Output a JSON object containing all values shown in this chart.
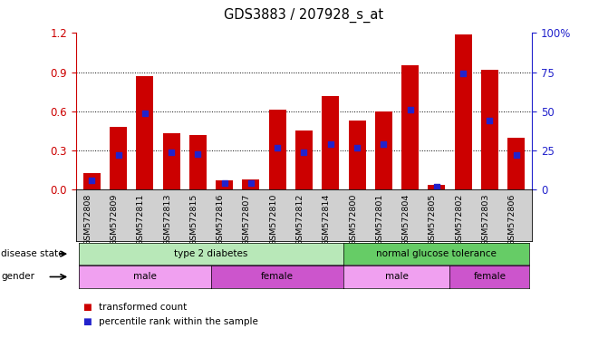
{
  "title": "GDS3883 / 207928_s_at",
  "samples": [
    "GSM572808",
    "GSM572809",
    "GSM572811",
    "GSM572813",
    "GSM572815",
    "GSM572816",
    "GSM572807",
    "GSM572810",
    "GSM572812",
    "GSM572814",
    "GSM572800",
    "GSM572801",
    "GSM572804",
    "GSM572805",
    "GSM572802",
    "GSM572803",
    "GSM572806"
  ],
  "red_values": [
    0.13,
    0.48,
    0.87,
    0.43,
    0.42,
    0.07,
    0.08,
    0.61,
    0.45,
    0.72,
    0.53,
    0.6,
    0.95,
    0.04,
    1.19,
    0.92,
    0.4
  ],
  "blue_values_pct": [
    6,
    22,
    49,
    24,
    23,
    4,
    4,
    27,
    24,
    29,
    27,
    29,
    51,
    2,
    74,
    44,
    22
  ],
  "ylim_left": [
    0,
    1.2
  ],
  "ylim_right": [
    0,
    100
  ],
  "yticks_left": [
    0,
    0.3,
    0.6,
    0.9,
    1.2
  ],
  "yticks_right": [
    0,
    25,
    50,
    75,
    100
  ],
  "bar_color": "#cc0000",
  "dot_color": "#2222cc",
  "disease_groups": [
    {
      "label": "type 2 diabetes",
      "start": 0,
      "end": 10,
      "color": "#b8e8b8"
    },
    {
      "label": "normal glucose tolerance",
      "start": 10,
      "end": 17,
      "color": "#66cc66"
    }
  ],
  "gender_groups": [
    {
      "label": "male",
      "start": 0,
      "end": 5,
      "color": "#f0a0f0"
    },
    {
      "label": "female",
      "start": 5,
      "end": 10,
      "color": "#cc55cc"
    },
    {
      "label": "male",
      "start": 10,
      "end": 14,
      "color": "#f0a0f0"
    },
    {
      "label": "female",
      "start": 14,
      "end": 17,
      "color": "#cc55cc"
    }
  ],
  "legend_items": [
    {
      "label": "transformed count",
      "color": "#cc0000"
    },
    {
      "label": "percentile rank within the sample",
      "color": "#2222cc"
    }
  ],
  "tick_color_left": "#cc0000",
  "tick_color_right": "#2222cc",
  "ticklabel_bg": "#d0d0d0"
}
